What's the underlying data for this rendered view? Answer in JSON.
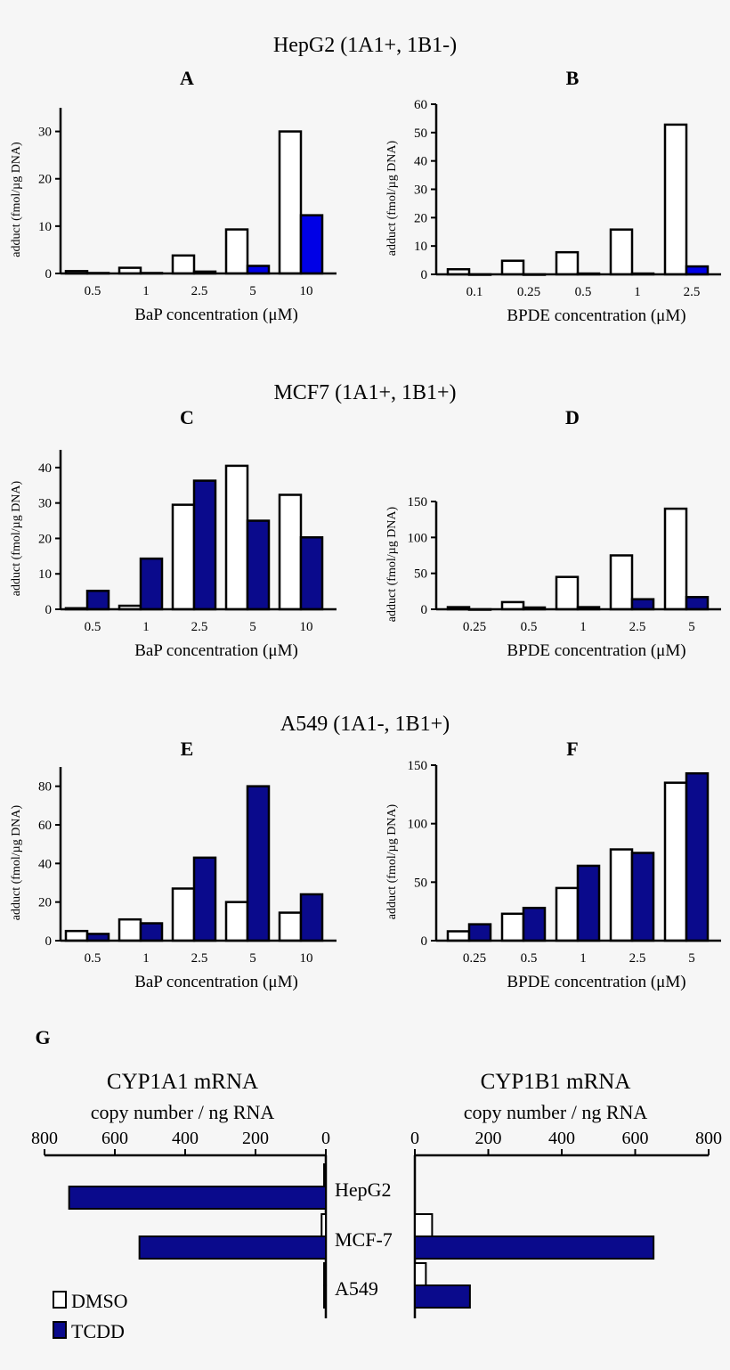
{
  "colors": {
    "dmso": "#ffffff",
    "tcdd_bright": "#0000e6",
    "tcdd_navy": "#0a0a8c",
    "axis": "#000000",
    "background": "#f6f6f6"
  },
  "group_titles": [
    "HepG2 (1A1+, 1B1-)",
    "MCF7 (1A1+, 1B1+)",
    "A549 (1A1-, 1B1+)"
  ],
  "chart_data": [
    {
      "type": "bar",
      "panel": "A",
      "xlabel": "BaP concentration (μM)",
      "ylabel": "adduct (fmol/µg DNA)",
      "categories": [
        "0.5",
        "1",
        "2.5",
        "5",
        "10"
      ],
      "ylim": [
        0,
        35
      ],
      "yticks": [
        0,
        10,
        20,
        30
      ],
      "tcdd_color": "#0000e6",
      "series": [
        {
          "values": [
            0.5,
            1.2,
            3.8,
            9.3,
            30
          ]
        },
        {
          "values": [
            0.1,
            0.1,
            0.4,
            1.6,
            12.3
          ]
        }
      ]
    },
    {
      "type": "bar",
      "panel": "B",
      "xlabel": "BPDE concentration (μM)",
      "ylabel": "adduct (fmol/µg DNA)",
      "categories": [
        "0.1",
        "0.25",
        "0.5",
        "1",
        "2.5"
      ],
      "ylim": [
        0,
        60
      ],
      "yticks": [
        0,
        10,
        20,
        30,
        40,
        50,
        60
      ],
      "tcdd_color": "#0000e6",
      "series": [
        {
          "values": [
            1.8,
            4.8,
            7.8,
            15.8,
            52.8
          ]
        },
        {
          "values": [
            0,
            0,
            0.3,
            0.3,
            2.8
          ]
        }
      ]
    },
    {
      "type": "bar",
      "panel": "C",
      "xlabel": "BaP concentration (μM)",
      "ylabel": "adduct (fmol/µg DNA)",
      "categories": [
        "0.5",
        "1",
        "2.5",
        "5",
        "10"
      ],
      "ylim": [
        0,
        45
      ],
      "yticks": [
        0,
        10,
        20,
        30,
        40
      ],
      "tcdd_color": "#0a0a8c",
      "series": [
        {
          "values": [
            0.3,
            1,
            29.5,
            40.5,
            32.3
          ]
        },
        {
          "values": [
            5.2,
            14.3,
            36.3,
            25,
            20.3
          ]
        }
      ]
    },
    {
      "type": "bar",
      "panel": "D",
      "xlabel": "BPDE concentration (μM)",
      "ylabel": "adduct (fmol/µg DNA)",
      "categories": [
        "0.25",
        "0.5",
        "1",
        "2.5",
        "5"
      ],
      "ylim": [
        0,
        150
      ],
      "yticks": [
        0,
        50,
        100,
        150
      ],
      "tcdd_color": "#0a0a8c",
      "series": [
        {
          "values": [
            3,
            10,
            45,
            75,
            140
          ]
        },
        {
          "values": [
            0,
            2.5,
            3,
            14,
            17
          ]
        }
      ]
    },
    {
      "type": "bar",
      "panel": "E",
      "xlabel": "BaP concentration (μM)",
      "ylabel": "adduct (fmol/µg DNA)",
      "categories": [
        "0.5",
        "1",
        "2.5",
        "5",
        "10"
      ],
      "ylim": [
        0,
        90
      ],
      "yticks": [
        0,
        20,
        40,
        60,
        80
      ],
      "tcdd_color": "#0a0a8c",
      "series": [
        {
          "values": [
            5,
            11,
            27,
            20,
            14.5
          ]
        },
        {
          "values": [
            3.5,
            9,
            43,
            80,
            24
          ]
        }
      ]
    },
    {
      "type": "bar",
      "panel": "F",
      "xlabel": "BPDE concentration (μM)",
      "ylabel": "adduct (fmol/µg DNA)",
      "categories": [
        "0.25",
        "0.5",
        "1",
        "2.5",
        "5"
      ],
      "ylim": [
        0,
        150
      ],
      "yticks": [
        0,
        50,
        100,
        150
      ],
      "tcdd_color": "#0a0a8c",
      "series": [
        {
          "values": [
            8,
            23,
            45,
            78,
            135
          ]
        },
        {
          "values": [
            14,
            28,
            64,
            75,
            143
          ]
        }
      ]
    },
    {
      "type": "bar",
      "orientation": "horizontal",
      "panel": "G",
      "title": "CYP1A1 mRNA",
      "subtitle": "copy number / ng RNA",
      "xlim": [
        0,
        800
      ],
      "xticks": [
        0,
        200,
        400,
        600,
        800
      ],
      "direction": "reversed",
      "categories": [
        "HepG2",
        "MCF-7",
        "A549"
      ],
      "series": [
        {
          "name": "DMSO",
          "values": [
            5,
            12,
            5
          ]
        },
        {
          "name": "TCDD",
          "values": [
            730,
            530,
            5
          ]
        }
      ]
    },
    {
      "type": "bar",
      "orientation": "horizontal",
      "panel": "G",
      "title": "CYP1B1 mRNA",
      "subtitle": "copy number / ng RNA",
      "xlim": [
        0,
        800
      ],
      "xticks": [
        0,
        200,
        400,
        600,
        800
      ],
      "categories": [
        "HepG2",
        "MCF-7",
        "A549"
      ],
      "series": [
        {
          "name": "DMSO",
          "values": [
            0,
            47,
            30
          ]
        },
        {
          "name": "TCDD",
          "values": [
            0,
            650,
            150
          ]
        }
      ]
    }
  ],
  "legend": [
    "DMSO",
    "TCDD"
  ]
}
